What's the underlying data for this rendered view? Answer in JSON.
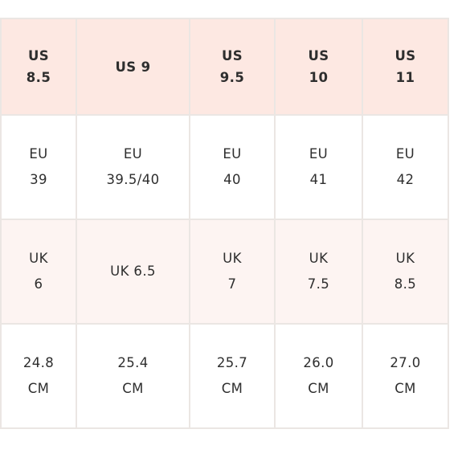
{
  "table": {
    "header": [
      [
        "US",
        "8.5"
      ],
      [
        "US 9"
      ],
      [
        "US",
        "9.5"
      ],
      [
        "US",
        "10"
      ],
      [
        "US",
        "11"
      ]
    ],
    "eu": [
      [
        "EU",
        "39"
      ],
      [
        "EU",
        "39.5/40"
      ],
      [
        "EU",
        "40"
      ],
      [
        "EU",
        "41"
      ],
      [
        "EU",
        "42"
      ]
    ],
    "uk": [
      [
        "UK",
        "6"
      ],
      [
        "UK 6.5"
      ],
      [
        "UK",
        "7"
      ],
      [
        "UK",
        "7.5"
      ],
      [
        "UK",
        "8.5"
      ]
    ],
    "cm": [
      [
        "24.8",
        "CM"
      ],
      [
        "25.4",
        "CM"
      ],
      [
        "25.7",
        "CM"
      ],
      [
        "26.0",
        "CM"
      ],
      [
        "27.0",
        "CM"
      ]
    ]
  },
  "colors": {
    "header_bg": "#fde8e2",
    "tinted_row_bg": "#fdf4f2",
    "border": "#ebe6e3",
    "text": "#2e2e2e"
  }
}
